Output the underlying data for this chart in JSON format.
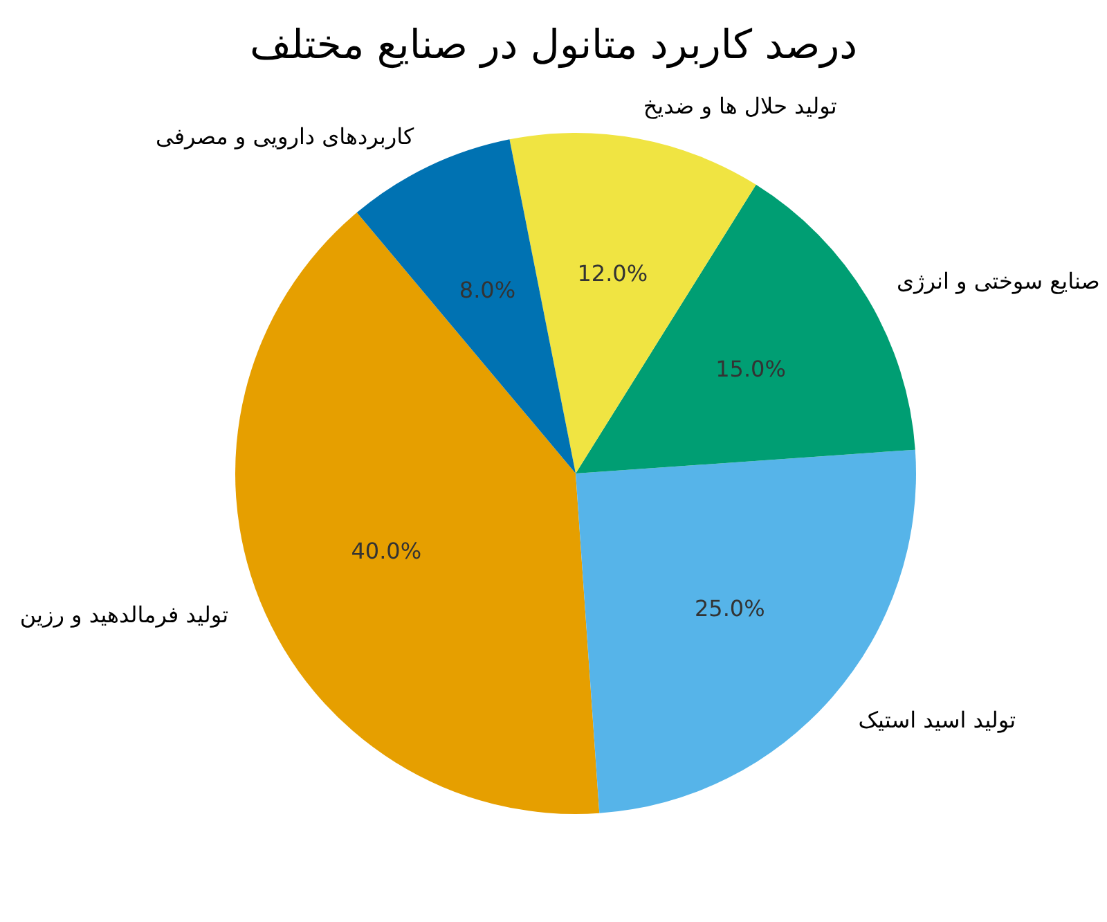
{
  "chart_data": {
    "type": "pie",
    "title": "درصد کاربرد متانول در صنایع مختلف",
    "categories": [
      "تولید فرمالدهید و رزین",
      "تولید اسید استیک",
      "صنایع سوختی و انرژی",
      "تولید حلال ها و ضدیخ",
      "کاربردهای دارویی و مصرفی"
    ],
    "values": [
      40,
      25,
      15,
      12,
      8
    ],
    "colors": [
      "#e69f00",
      "#56b4e9",
      "#009e73",
      "#f0e442",
      "#0072b2"
    ],
    "value_labels": [
      "40.0%",
      "25.0%",
      "15.0%",
      "12.0%",
      "8.0%"
    ]
  }
}
